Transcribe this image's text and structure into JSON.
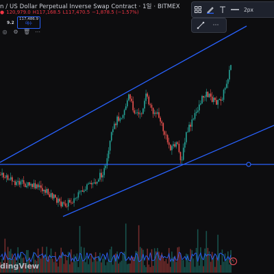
{
  "header": {
    "title": "n / US Dollar Perpetual Inverse Swap Contract · 1일 · BITMEX",
    "ohlc": {
      "dot": "●",
      "open": "120,979.0",
      "high": "H117,168.5",
      "low": "L117,470.5",
      "change": "−1,878.5 (−1.57%)"
    },
    "qty": "9.2",
    "price_box_top": "117,486.9",
    "price_box_bottom": "매수"
  },
  "drawing_toolbar": {
    "stroke_width_label": "2px"
  },
  "watermark": "dingView",
  "colors": {
    "background": "#0d0d0f",
    "up": "#26a69a",
    "down": "#ef5350",
    "trendline": "#2962ff",
    "toolbar": "#1e222d"
  },
  "icons": [
    "layout-icon",
    "pencil-icon",
    "text-icon",
    "line-style-icon",
    "diagonal-line-icon",
    "more-icon",
    "eye-icon",
    "settings-icon",
    "trash-icon",
    "flash-icon"
  ],
  "chart_data": {
    "type": "candlestick",
    "trend_channel": {
      "upper": "rising line above price",
      "lower": "rising line below price"
    },
    "horizontal_level": true,
    "volume_histogram": true,
    "moving_average_overlay": true
  }
}
